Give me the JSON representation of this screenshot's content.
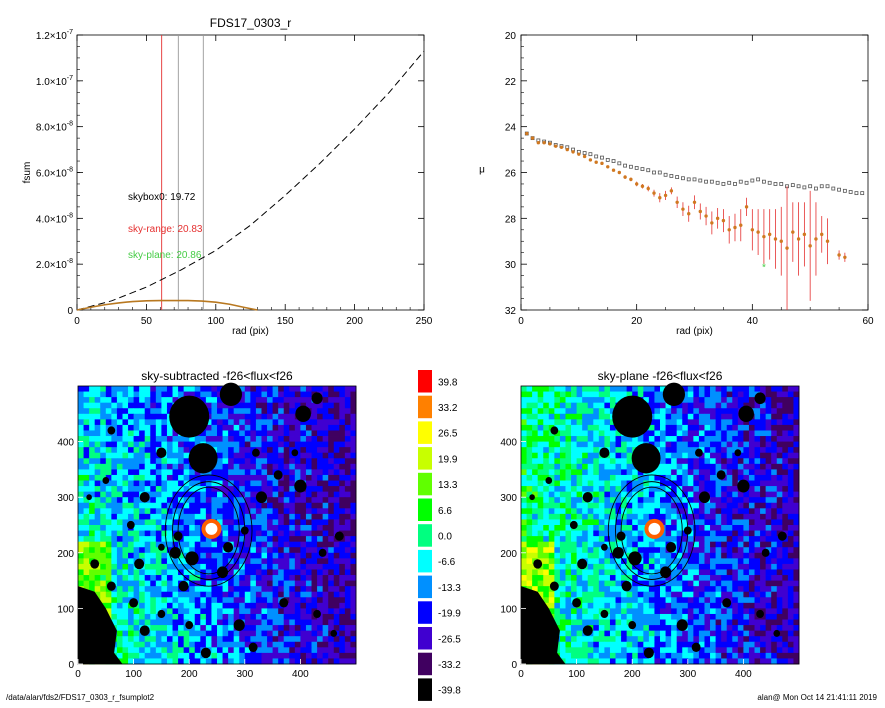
{
  "chart_data": [
    {
      "type": "line",
      "title": "FDS17_0303_r",
      "xlabel": "rad (pix)",
      "ylabel": "fsum",
      "xlim": [
        0,
        250
      ],
      "ylim": [
        0,
        1.2e-07
      ],
      "x_ticks": [
        "0",
        "50",
        "100",
        "150",
        "200",
        "250"
      ],
      "y_ticks": [
        {
          "mant": "0",
          "exp": ""
        },
        {
          "mant": "2.0×10",
          "exp": "-8"
        },
        {
          "mant": "4.0×10",
          "exp": "-8"
        },
        {
          "mant": "6.0×10",
          "exp": "-8"
        },
        {
          "mant": "8.0×10",
          "exp": "-8"
        },
        {
          "mant": "1.0×10",
          "exp": "-7"
        },
        {
          "mant": "1.2×10",
          "exp": "-7"
        }
      ],
      "vlines": [
        {
          "x": 61,
          "color": "#e53030"
        },
        {
          "x": 73,
          "color": "#999999"
        },
        {
          "x": 91,
          "color": "#999999"
        }
      ],
      "series": [
        {
          "style": "dashed",
          "color": "#000000",
          "x": [
            0,
            25,
            50,
            75,
            100,
            125,
            150,
            175,
            200,
            225,
            250
          ],
          "y": [
            0,
            4e-09,
            1e-08,
            1.75e-08,
            2.6e-08,
            3.7e-08,
            5e-08,
            6.4e-08,
            7.9e-08,
            9.5e-08,
            1.13e-07
          ]
        },
        {
          "style": "solid",
          "color": "#b87820",
          "x": [
            0,
            10,
            20,
            30,
            40,
            50,
            60,
            70,
            80,
            90,
            100,
            110,
            120,
            130
          ],
          "y": [
            0,
            1.2e-09,
            2.3e-09,
            3.1e-09,
            3.7e-09,
            4e-09,
            4.1e-09,
            4.1e-09,
            4.1e-09,
            3.9e-09,
            3.4e-09,
            2.5e-09,
            1.2e-09,
            0
          ]
        }
      ],
      "annotations": [
        {
          "text": "skybox0: 19.72",
          "color": "#000000"
        },
        {
          "text": "sky-range: 20.83",
          "color": "#e53030"
        },
        {
          "text": "sky-plane: 20.86",
          "color": "#44cc44"
        }
      ]
    },
    {
      "type": "scatter",
      "xlabel": "rad (pix)",
      "ylabel": "μ",
      "xlim": [
        0,
        60
      ],
      "ylim": [
        32,
        20
      ],
      "x_ticks": [
        "0",
        "20",
        "40",
        "60"
      ],
      "y_ticks": [
        "20",
        "22",
        "24",
        "26",
        "28",
        "30",
        "32"
      ],
      "series": [
        {
          "marker": "square",
          "color": "#555555",
          "x": [
            1,
            2,
            3,
            4,
            5,
            6,
            7,
            8,
            9,
            10,
            11,
            12,
            13,
            14,
            15,
            16,
            17,
            18,
            19,
            20,
            21,
            22,
            23,
            24,
            25,
            26,
            27,
            28,
            29,
            30,
            31,
            32,
            33,
            34,
            35,
            36,
            37,
            38,
            39,
            40,
            41,
            42,
            43,
            44,
            45,
            46,
            47,
            48,
            49,
            50,
            51,
            52,
            53,
            54,
            55,
            56,
            57,
            58,
            59
          ],
          "y": [
            24.3,
            24.5,
            24.6,
            24.65,
            24.7,
            24.8,
            24.85,
            24.9,
            25.0,
            25.1,
            25.15,
            25.2,
            25.3,
            25.35,
            25.45,
            25.5,
            25.6,
            25.7,
            25.75,
            25.8,
            25.85,
            25.9,
            26.0,
            26.0,
            26.1,
            26.15,
            26.2,
            26.25,
            26.3,
            26.3,
            26.35,
            26.4,
            26.4,
            26.45,
            26.5,
            26.45,
            26.5,
            26.4,
            26.45,
            26.35,
            26.3,
            26.4,
            26.45,
            26.5,
            26.5,
            26.6,
            26.55,
            26.6,
            26.65,
            26.6,
            26.7,
            26.6,
            26.6,
            26.7,
            26.75,
            26.8,
            26.85,
            26.9,
            26.9
          ]
        },
        {
          "marker": "dot",
          "color": "#d07820",
          "errcolor": "#e53030",
          "x": [
            1,
            2,
            3,
            4,
            5,
            6,
            7,
            8,
            9,
            10,
            11,
            12,
            13,
            14,
            15,
            16,
            17,
            18,
            19,
            20,
            21,
            22,
            23,
            24,
            25,
            26,
            27,
            28,
            29,
            30,
            31,
            32,
            33,
            34,
            35,
            36,
            37,
            38,
            39,
            40,
            41,
            42,
            43,
            44,
            45,
            46,
            47,
            48,
            49,
            50,
            51,
            52,
            53,
            55,
            56
          ],
          "y": [
            24.3,
            24.5,
            24.7,
            24.7,
            24.75,
            24.85,
            24.9,
            25.0,
            25.1,
            25.2,
            25.3,
            25.45,
            25.55,
            25.6,
            25.75,
            25.9,
            26.0,
            26.2,
            26.3,
            26.5,
            26.6,
            26.7,
            26.9,
            27.1,
            27.0,
            26.8,
            27.3,
            27.6,
            27.8,
            27.3,
            27.7,
            27.9,
            28.2,
            28.0,
            28.1,
            28.5,
            28.4,
            28.3,
            27.5,
            28.5,
            28.6,
            28.8,
            28.7,
            28.9,
            29.0,
            29.3,
            28.6,
            28.9,
            28.7,
            29.2,
            28.9,
            28.7,
            29.0,
            29.6,
            29.7
          ],
          "err": [
            0.05,
            0.05,
            0.05,
            0.05,
            0.05,
            0.05,
            0.05,
            0.05,
            0.05,
            0.05,
            0.05,
            0.05,
            0.05,
            0.05,
            0.05,
            0.05,
            0.05,
            0.08,
            0.08,
            0.1,
            0.1,
            0.12,
            0.15,
            0.2,
            0.2,
            0.15,
            0.25,
            0.3,
            0.35,
            0.3,
            0.35,
            0.4,
            0.5,
            0.45,
            0.5,
            0.6,
            0.6,
            0.7,
            0.4,
            0.9,
            1.0,
            1.2,
            1.1,
            1.3,
            1.5,
            2.7,
            1.3,
            1.6,
            1.4,
            2.4,
            1.6,
            0.8,
            1.0,
            0.2,
            0.2
          ]
        },
        {
          "marker": "star",
          "color": "#44cc44",
          "x": [
            42
          ],
          "y": [
            30.1
          ]
        }
      ]
    },
    {
      "type": "heatmap",
      "title": "sky-subtracted -f26<flux<f26",
      "xlim": [
        0,
        500
      ],
      "ylim": [
        0,
        500
      ],
      "x_ticks": [
        "0",
        "100",
        "200",
        "300",
        "400"
      ],
      "y_ticks": [
        "0",
        "100",
        "200",
        "300",
        "400"
      ]
    },
    {
      "type": "heatmap",
      "title": "sky-plane -f26<flux<f26",
      "xlim": [
        0,
        500
      ],
      "ylim": [
        0,
        500
      ],
      "x_ticks": [
        "0",
        "100",
        "200",
        "300",
        "400"
      ],
      "y_ticks": [
        "0",
        "100",
        "200",
        "300",
        "400"
      ]
    }
  ],
  "colorbar": {
    "labels": [
      "39.8",
      "33.2",
      "26.5",
      "19.9",
      "13.3",
      "6.6",
      "0.0",
      "-6.6",
      "-13.3",
      "-19.9",
      "-26.5",
      "-33.2",
      "-39.8"
    ],
    "colors": [
      "#ff0000",
      "#ff8000",
      "#ffff00",
      "#c8ff00",
      "#60ff00",
      "#00ff00",
      "#00ff80",
      "#00ffff",
      "#0090ff",
      "#0000ff",
      "#4000d0",
      "#400060",
      "#000000"
    ]
  },
  "footer": {
    "left": "/data/alan/fds2/FDS17_0303_r_fsumplot2",
    "right": "alan@  Mon Oct 14 21:41:11 2019"
  }
}
